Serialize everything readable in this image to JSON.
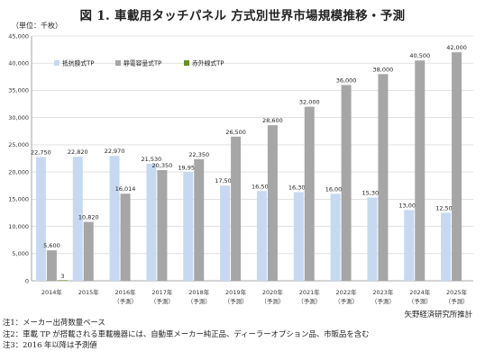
{
  "title": "図 1. 車載用タッチパネル 方式別世界市場規模推移・予測",
  "unit_label": "（単位：千枚）",
  "source": "矢野経済研究所推計",
  "notes": [
    "注1：メーカー出荷数量ベース",
    "注2：車載 TP が搭載される車載機器には、自動車メーカー純正品、ディーラーオプション品、市販品を含む",
    "注3：2016 年以降は予測値"
  ],
  "colors": {
    "resistive": "#c6d9f0",
    "capacitive": "#a6a6a6",
    "infrared": "#6b8e23",
    "grid": "#d0d0d0",
    "axis": "#8c8c8c"
  },
  "chart_data": {
    "type": "bar",
    "categories": [
      "2014年",
      "2015年",
      "2016年",
      "2017年",
      "2018年",
      "2019年",
      "2020年",
      "2021年",
      "2022年",
      "2023年",
      "2024年",
      "2025年"
    ],
    "category_sublabels": [
      "",
      "",
      "（予測）",
      "（予測）",
      "（予測）",
      "（予測）",
      "（予測）",
      "（予測）",
      "（予測）",
      "（予測）",
      "（予測）",
      "（予測）"
    ],
    "series": [
      {
        "name": "抵抗膜式TP",
        "color_key": "resistive",
        "values": [
          22750,
          22820,
          22970,
          21530,
          19950,
          17500,
          16500,
          16300,
          16000,
          15300,
          13000,
          12500
        ]
      },
      {
        "name": "静電容量式TP",
        "color_key": "capacitive",
        "values": [
          5600,
          10820,
          16014,
          20350,
          22350,
          26500,
          28600,
          32000,
          36000,
          38000,
          40500,
          42000
        ]
      },
      {
        "name": "赤外線式TP",
        "color_key": "infrared",
        "values": [
          3,
          null,
          null,
          null,
          null,
          null,
          null,
          null,
          null,
          null,
          null,
          null
        ]
      }
    ],
    "data_labels": [
      [
        "22,750",
        "22,820",
        "22,970",
        "21,530",
        "19,950",
        "17,500",
        "16,500",
        "16,300",
        "16,000",
        "15,300",
        "13,000",
        "12,500"
      ],
      [
        "5,600",
        "10,820",
        "16,014",
        "20,350",
        "22,350",
        "26,500",
        "28,600",
        "32,000",
        "36,000",
        "38,000",
        "40,500",
        "42,000"
      ],
      [
        "3",
        "",
        "",
        "",
        "",
        "",
        "",
        "",
        "",
        "",
        "",
        ""
      ]
    ],
    "yticks": [
      "0",
      "5,000",
      "10,000",
      "15,000",
      "20,000",
      "25,000",
      "30,000",
      "35,000",
      "40,000",
      "45,000"
    ],
    "ylim": [
      0,
      45000
    ],
    "ystep": 5000,
    "grid": true,
    "legend_position": "top-left"
  }
}
